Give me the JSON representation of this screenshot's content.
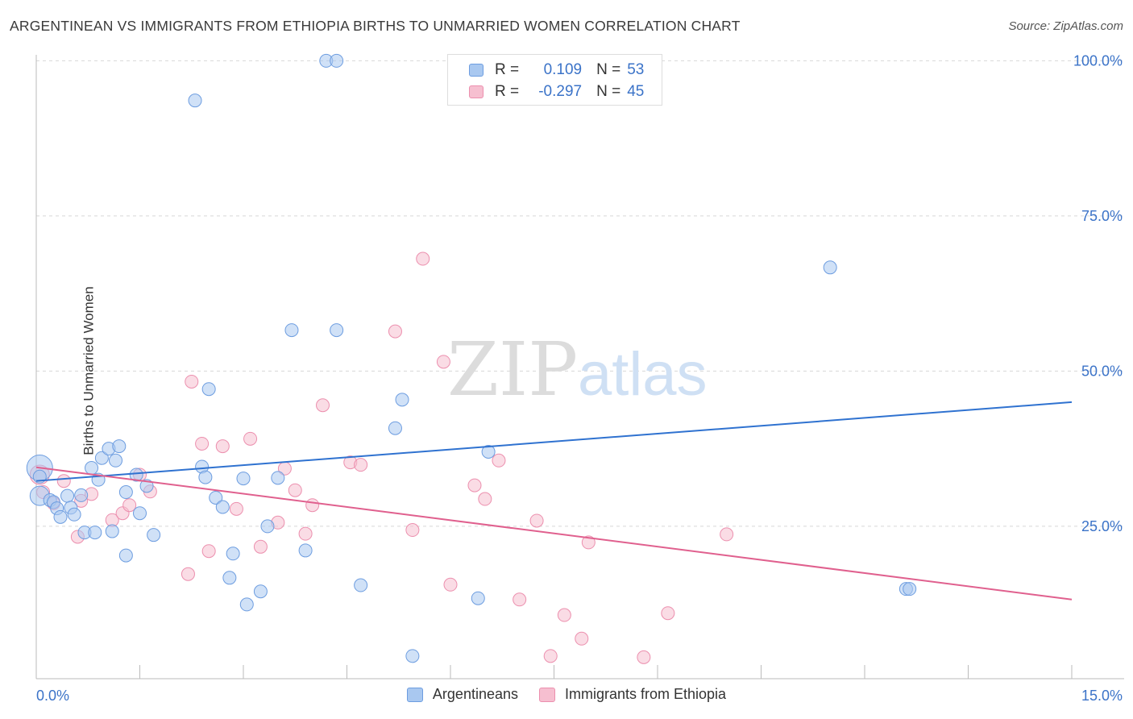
{
  "title": "ARGENTINEAN VS IMMIGRANTS FROM ETHIOPIA BIRTHS TO UNMARRIED WOMEN CORRELATION CHART",
  "source": "Source: ZipAtlas.com",
  "watermark": {
    "zip": "ZIP",
    "atlas": "atlas"
  },
  "legend": {
    "rows": [
      {
        "r_label": "R =",
        "r_value": "0.109",
        "n_label": "N =",
        "n_value": "53"
      },
      {
        "r_label": "R =",
        "r_value": "-0.297",
        "n_label": "N =",
        "n_value": "45"
      }
    ]
  },
  "bottom_legend": {
    "series1": "Argentineans",
    "series2": "Immigrants from Ethiopia"
  },
  "colors": {
    "blue_fill": "#a9c8f0",
    "blue_stroke": "#6d9de0",
    "blue_line": "#2f72d0",
    "pink_fill": "#f6bfd0",
    "pink_stroke": "#ec8fae",
    "pink_line": "#e0608e",
    "tick_label": "#3b73c8",
    "grid": "#d8d8d8"
  },
  "chart_data": {
    "type": "scatter",
    "title": "ARGENTINEAN VS IMMIGRANTS FROM ETHIOPIA BIRTHS TO UNMARRIED WOMEN CORRELATION CHART",
    "xlabel": "",
    "ylabel": "Births to Unmarried Women",
    "xlim": [
      0,
      15
    ],
    "ylim": [
      2,
      102
    ],
    "x_tick_labels": [
      {
        "value": 0,
        "label": "0.0%"
      },
      {
        "value": 15,
        "label": "15.0%"
      }
    ],
    "y_tick_labels": [
      {
        "value": 25,
        "label": "25.0%"
      },
      {
        "value": 50,
        "label": "50.0%"
      },
      {
        "value": 75,
        "label": "75.0%"
      },
      {
        "value": 100,
        "label": "100.0%"
      }
    ],
    "series": [
      {
        "name": "Argentineans",
        "color": "blue",
        "trend": {
          "x": [
            0,
            15
          ],
          "y": [
            32.3,
            45.0
          ]
        },
        "points": [
          [
            0.05,
            34.4,
            16
          ],
          [
            0.05,
            29.9,
            12
          ],
          [
            0.2,
            29.2,
            8
          ],
          [
            0.25,
            28.9,
            8
          ],
          [
            0.3,
            27.9,
            8
          ],
          [
            0.35,
            26.5,
            8
          ],
          [
            0.45,
            29.9,
            8
          ],
          [
            0.5,
            28.0,
            8
          ],
          [
            0.55,
            26.9,
            8
          ],
          [
            0.65,
            30.0,
            8
          ],
          [
            0.7,
            24.0,
            8
          ],
          [
            0.8,
            34.4,
            8
          ],
          [
            0.85,
            24.0,
            8
          ],
          [
            0.9,
            32.5,
            8
          ],
          [
            0.95,
            36.0,
            8
          ],
          [
            1.05,
            37.5,
            8
          ],
          [
            1.1,
            24.2,
            8
          ],
          [
            1.15,
            35.6,
            8
          ],
          [
            1.2,
            37.9,
            8
          ],
          [
            1.3,
            30.5,
            8
          ],
          [
            1.3,
            20.3,
            8
          ],
          [
            1.45,
            33.3,
            8
          ],
          [
            1.5,
            27.1,
            8
          ],
          [
            1.6,
            31.5,
            8
          ],
          [
            1.7,
            23.6,
            8
          ],
          [
            2.3,
            93.6,
            8
          ],
          [
            2.4,
            34.6,
            8
          ],
          [
            2.45,
            32.9,
            8
          ],
          [
            2.5,
            47.1,
            8
          ],
          [
            2.6,
            29.6,
            8
          ],
          [
            2.7,
            28.1,
            8
          ],
          [
            2.8,
            16.7,
            8
          ],
          [
            2.85,
            20.6,
            8
          ],
          [
            3.0,
            32.7,
            8
          ],
          [
            3.05,
            12.4,
            8
          ],
          [
            3.25,
            14.5,
            8
          ],
          [
            3.35,
            25.0,
            8
          ],
          [
            3.5,
            32.8,
            8
          ],
          [
            3.7,
            56.6,
            8
          ],
          [
            3.9,
            21.1,
            8
          ],
          [
            4.35,
            56.6,
            8
          ],
          [
            4.2,
            100.0,
            8
          ],
          [
            4.35,
            100.0,
            8
          ],
          [
            4.7,
            15.5,
            8
          ],
          [
            5.2,
            40.8,
            8
          ],
          [
            5.3,
            45.4,
            8
          ],
          [
            5.45,
            4.1,
            8
          ],
          [
            6.4,
            13.4,
            8
          ],
          [
            6.55,
            37.0,
            8
          ],
          [
            11.5,
            66.7,
            8
          ],
          [
            12.6,
            14.9,
            8
          ],
          [
            12.65,
            14.9,
            8
          ],
          [
            0.05,
            33.0,
            8
          ]
        ]
      },
      {
        "name": "Immigrants from Ethiopia",
        "color": "pink",
        "trend": {
          "x": [
            0,
            15
          ],
          "y": [
            34.5,
            13.2
          ]
        },
        "points": [
          [
            0.05,
            33.3,
            12
          ],
          [
            0.1,
            30.5,
            8
          ],
          [
            0.25,
            28.7,
            8
          ],
          [
            0.4,
            32.3,
            8
          ],
          [
            0.6,
            23.3,
            8
          ],
          [
            0.65,
            29.1,
            8
          ],
          [
            0.8,
            30.2,
            8
          ],
          [
            1.1,
            26.0,
            8
          ],
          [
            1.25,
            27.1,
            8
          ],
          [
            1.35,
            28.4,
            8
          ],
          [
            1.5,
            33.3,
            8
          ],
          [
            1.65,
            30.6,
            8
          ],
          [
            2.2,
            17.3,
            8
          ],
          [
            2.25,
            48.3,
            8
          ],
          [
            2.4,
            38.3,
            8
          ],
          [
            2.5,
            21.0,
            8
          ],
          [
            2.7,
            37.9,
            8
          ],
          [
            2.9,
            27.8,
            8
          ],
          [
            3.1,
            39.1,
            8
          ],
          [
            3.25,
            21.7,
            8
          ],
          [
            3.5,
            25.6,
            8
          ],
          [
            3.6,
            34.3,
            8
          ],
          [
            3.75,
            30.8,
            8
          ],
          [
            3.9,
            23.8,
            8
          ],
          [
            4.0,
            28.4,
            8
          ],
          [
            4.15,
            44.5,
            8
          ],
          [
            4.55,
            35.3,
            8
          ],
          [
            4.7,
            34.9,
            8
          ],
          [
            5.2,
            56.4,
            8
          ],
          [
            5.45,
            24.4,
            8
          ],
          [
            5.6,
            68.1,
            8
          ],
          [
            5.9,
            51.5,
            8
          ],
          [
            6.0,
            15.6,
            8
          ],
          [
            6.35,
            31.6,
            8
          ],
          [
            6.5,
            29.4,
            8
          ],
          [
            6.7,
            35.6,
            8
          ],
          [
            7.0,
            13.2,
            8
          ],
          [
            7.25,
            25.9,
            8
          ],
          [
            7.45,
            4.1,
            8
          ],
          [
            7.65,
            10.7,
            8
          ],
          [
            7.9,
            6.9,
            8
          ],
          [
            8.0,
            22.4,
            8
          ],
          [
            8.8,
            3.9,
            8
          ],
          [
            9.15,
            11.0,
            8
          ],
          [
            10.0,
            23.7,
            8
          ]
        ]
      }
    ]
  }
}
